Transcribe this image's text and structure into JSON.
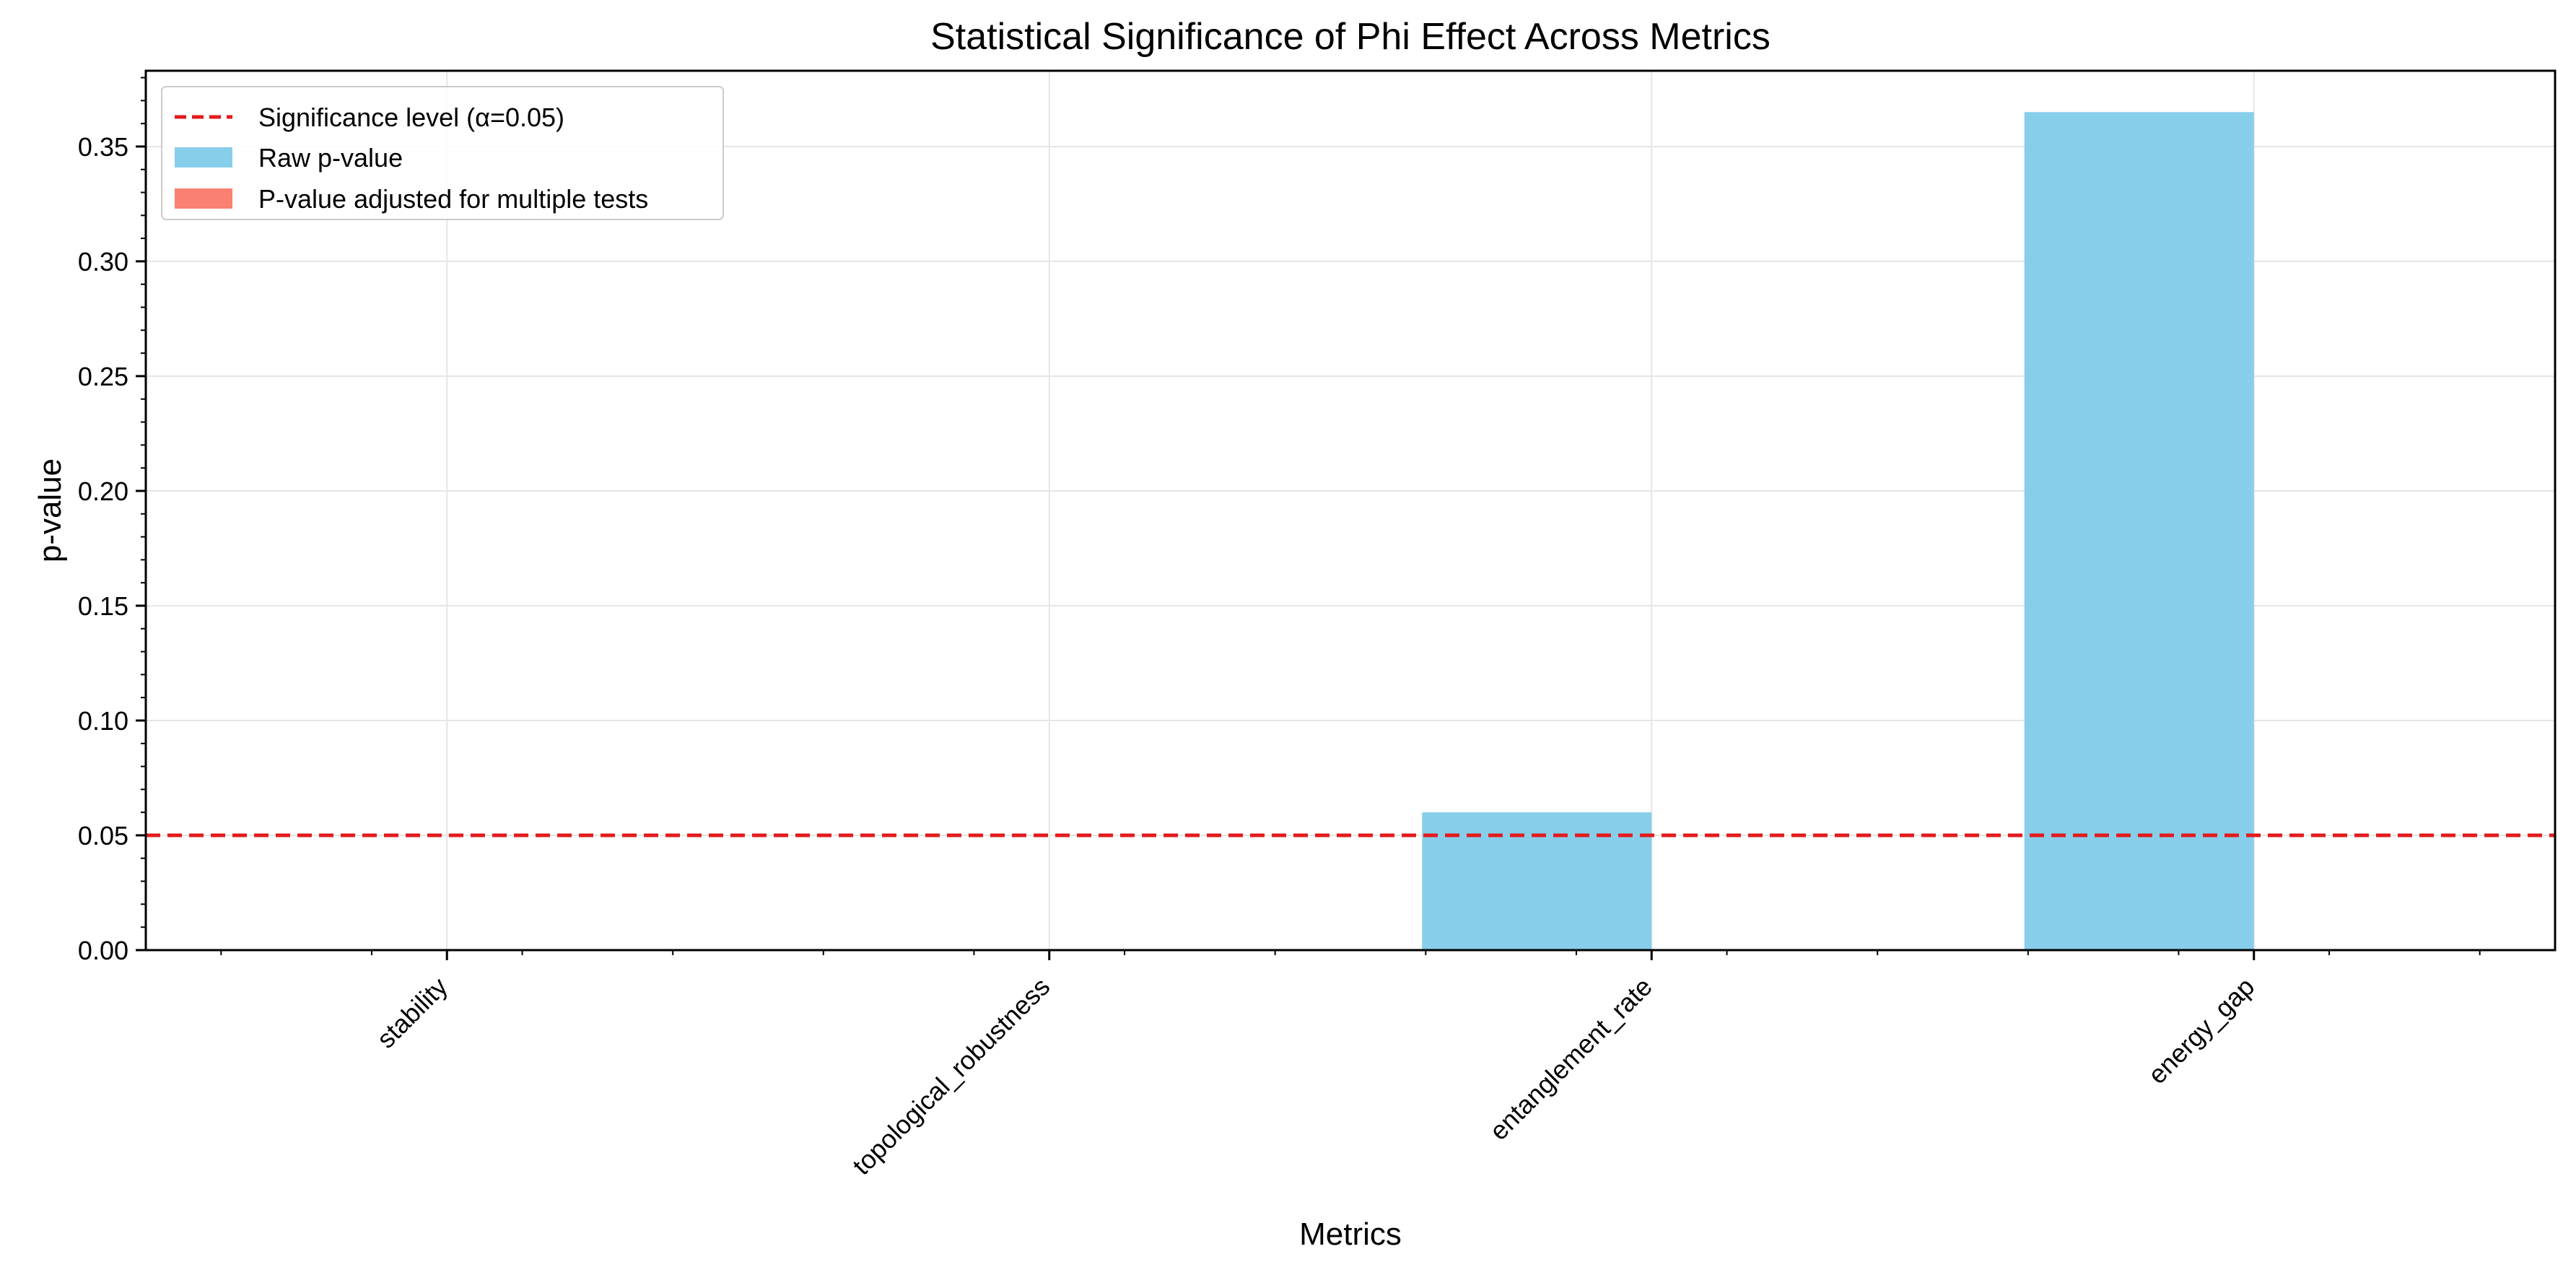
{
  "chart_data": {
    "type": "bar",
    "title": "Statistical Significance of Phi Effect Across Metrics",
    "xlabel": "Metrics",
    "ylabel": "p-value",
    "categories": [
      "stability",
      "topological_robustness",
      "entanglement_rate",
      "energy_gap"
    ],
    "series": [
      {
        "name": "Raw p-value",
        "color": "#87CEEB",
        "values": [
          0.0,
          0.0,
          0.06,
          0.365
        ]
      },
      {
        "name": "P-value adjusted for multiple tests",
        "color": "#FA8072",
        "values": [
          0.0,
          0.0,
          0.0,
          0.0
        ]
      }
    ],
    "reference_line": {
      "name": "Significance level (α=0.05)",
      "value": 0.05,
      "color": "#E31A1C",
      "style": "dashed"
    },
    "ylim": [
      0,
      0.383
    ],
    "yticks": [
      "0.00",
      "0.05",
      "0.10",
      "0.15",
      "0.20",
      "0.25",
      "0.30",
      "0.35"
    ],
    "grid": true,
    "legend_position": "top-left"
  }
}
